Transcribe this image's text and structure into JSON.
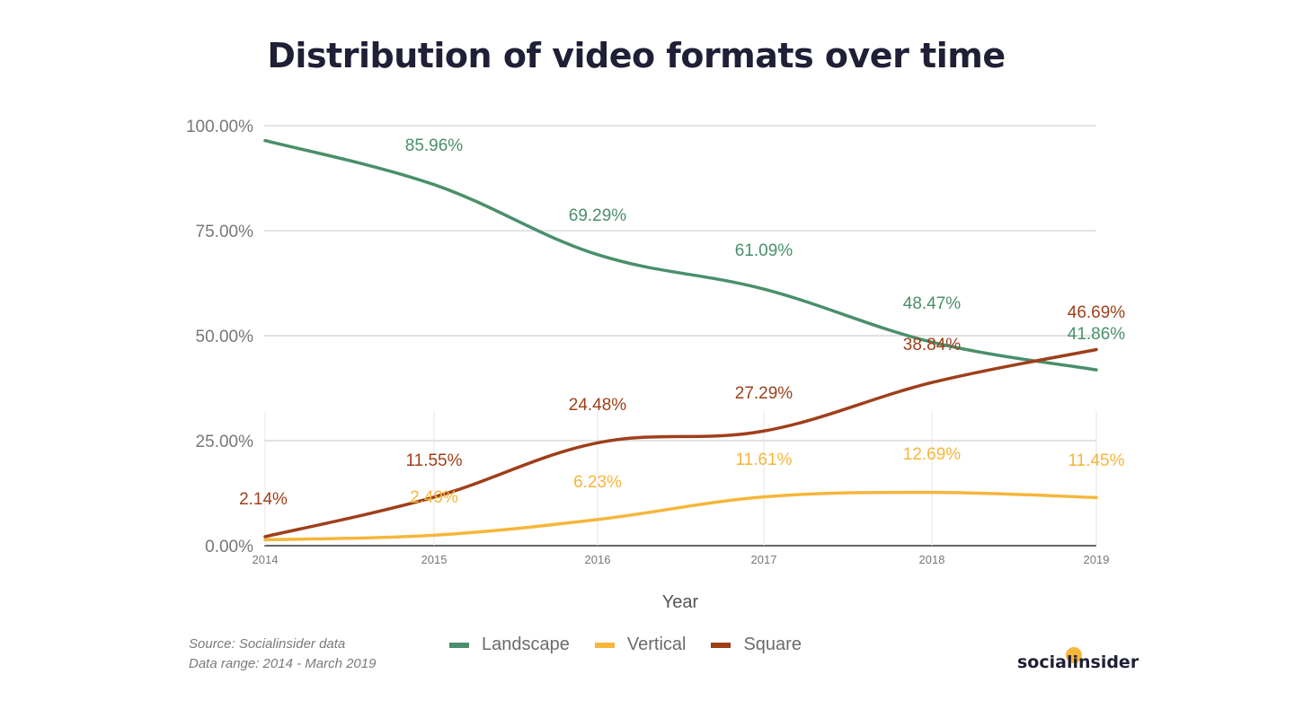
{
  "chart_data": {
    "type": "line",
    "title": "Distribution of video formats over time",
    "xlabel": "Year",
    "ylabel": "",
    "x": [
      "2014",
      "2015",
      "2016",
      "2017",
      "2018",
      "2019"
    ],
    "ylim": [
      0,
      100
    ],
    "yticks": [
      "0.00%",
      "25.00%",
      "50.00%",
      "75.00%",
      "100.00%"
    ],
    "grid": true,
    "legend_position": "bottom",
    "series": [
      {
        "name": "Landscape",
        "color": "#4a8f6a",
        "values": [
          96.45,
          85.96,
          69.29,
          61.09,
          48.47,
          41.86
        ],
        "labels": [
          "",
          "85.96%",
          "69.29%",
          "61.09%",
          "48.47%",
          "41.86%"
        ]
      },
      {
        "name": "Vertical",
        "color": "#f6b63a",
        "values": [
          1.41,
          2.49,
          6.23,
          11.61,
          12.69,
          11.45
        ],
        "labels": [
          "",
          "2.49%",
          "6.23%",
          "11.61%",
          "12.69%",
          "11.45%"
        ]
      },
      {
        "name": "Square",
        "color": "#9e3f1a",
        "values": [
          2.14,
          11.55,
          24.48,
          27.29,
          38.84,
          46.69
        ],
        "labels": [
          "2.14%",
          "11.55%",
          "24.48%",
          "27.29%",
          "38.84%",
          "46.69%"
        ]
      }
    ]
  },
  "footer": {
    "source": "Source: Socialinsider data",
    "range": "Data range: 2014 - March 2019",
    "brand": "socialinsider"
  }
}
